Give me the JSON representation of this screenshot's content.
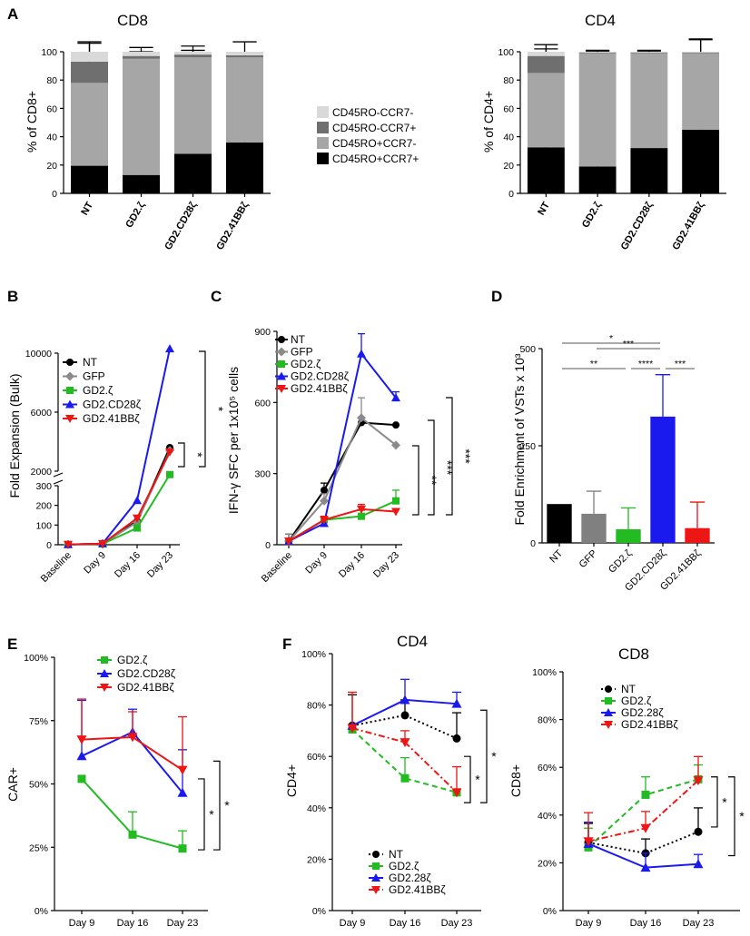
{
  "colors": {
    "black": "#000000",
    "dark_gray": "#6f6f6f",
    "gray": "#a6a6a6",
    "light_gray": "#d9d9d9",
    "green": "#22bb22",
    "blue": "#1a1aee",
    "red": "#ee1515",
    "diamond_gray": "#8a8a8a"
  },
  "panel_labels": {
    "A": "A",
    "B": "B",
    "C": "C",
    "D": "D",
    "E": "E",
    "F": "F"
  },
  "chart_data": [
    {
      "id": "A_CD8",
      "type": "bar",
      "stacked": true,
      "title": "CD8",
      "ylabel": "% of CD8+",
      "ylim": [
        0,
        100
      ],
      "yticks": [
        "0",
        "20",
        "40",
        "60",
        "80",
        "100"
      ],
      "categories": [
        "NT",
        "GD2.ζ",
        "GD2.CD28ζ",
        "GD2.41BBζ"
      ],
      "series": [
        {
          "name": "CD45RO+CCR7+",
          "color": "#000000",
          "values": [
            19.5,
            13,
            28,
            36
          ],
          "err": [
            11,
            5,
            7,
            12
          ]
        },
        {
          "name": "CD45RO+CCR7-",
          "color": "#a6a6a6",
          "values": [
            58.5,
            82,
            68,
            60
          ],
          "err": [
            0,
            0,
            0,
            0
          ]
        },
        {
          "name": "CD45RO-CCR7+",
          "color": "#6f6f6f",
          "values": [
            15,
            2,
            2,
            1.5
          ],
          "err": [
            13,
            3,
            3,
            2
          ]
        },
        {
          "name": "CD45RO-CCR7-",
          "color": "#d9d9d9",
          "values": [
            7,
            3,
            2,
            2.5
          ],
          "err": [
            7,
            3,
            4,
            7
          ]
        }
      ]
    },
    {
      "id": "A_CD4",
      "type": "bar",
      "stacked": true,
      "title": "CD4",
      "ylabel": "% of CD4+",
      "ylim": [
        0,
        100
      ],
      "yticks": [
        "0",
        "20",
        "40",
        "60",
        "80",
        "100"
      ],
      "categories": [
        "NT",
        "GD2.ζ",
        "GD2.CD28ζ",
        "GD2.41BBζ"
      ],
      "series": [
        {
          "name": "CD45RO+CCR7+",
          "color": "#000000",
          "values": [
            32.5,
            19,
            32,
            45
          ],
          "err": [
            6,
            3,
            2,
            11
          ]
        },
        {
          "name": "CD45RO+CCR7-",
          "color": "#a6a6a6",
          "values": [
            52.5,
            80,
            67,
            54
          ],
          "err": [
            0,
            0,
            0,
            0
          ]
        },
        {
          "name": "CD45RO-CCR7+",
          "color": "#6f6f6f",
          "values": [
            12,
            0.5,
            0.5,
            0.5
          ],
          "err": [
            5,
            1,
            1,
            9
          ]
        },
        {
          "name": "CD45RO-CCR7-",
          "color": "#d9d9d9",
          "values": [
            3,
            0.5,
            0.5,
            0.5
          ],
          "err": [
            5,
            1,
            1,
            9
          ]
        }
      ]
    },
    {
      "id": "B",
      "type": "line",
      "ylabel": "Fold Expansion (Bulk)",
      "x": [
        "Baseline",
        "Day 9",
        "Day 16",
        "Day 23"
      ],
      "ylim_lower": [
        0,
        300
      ],
      "ylim_upper": [
        2000,
        10000
      ],
      "yticks": [
        "0",
        "100",
        "200",
        "300",
        "2000",
        "6000",
        "10000"
      ],
      "series": [
        {
          "name": "NT",
          "color": "#000000",
          "marker": "circle",
          "values": [
            1,
            5,
            120,
            3600
          ]
        },
        {
          "name": "GFP",
          "color": "#8a8a8a",
          "marker": "diamond",
          "values": [
            1,
            5,
            115,
            3400
          ]
        },
        {
          "name": "GD2.ζ",
          "color": "#22bb22",
          "marker": "square",
          "values": [
            1,
            4,
            85,
            1600
          ]
        },
        {
          "name": "GD2.CD28ζ",
          "color": "#1a1aee",
          "marker": "triangle-up",
          "values": [
            1,
            6,
            225,
            10300
          ]
        },
        {
          "name": "GD2.41BBζ",
          "color": "#ee1515",
          "marker": "triangle-down",
          "values": [
            1,
            5,
            135,
            3300
          ]
        }
      ],
      "significance": [
        "*",
        "*"
      ]
    },
    {
      "id": "C",
      "type": "line",
      "ylabel": "IFN-γ SFC per 1x10⁵ cells",
      "x": [
        "Baseline",
        "Day 9",
        "Day 16",
        "Day 23"
      ],
      "ylim": [
        0,
        900
      ],
      "yticks": [
        "0",
        "300",
        "600",
        "900"
      ],
      "series": [
        {
          "name": "NT",
          "color": "#000000",
          "marker": "circle",
          "values": [
            15,
            230,
            515,
            505
          ],
          "err": [
            30,
            30,
            0,
            0
          ]
        },
        {
          "name": "GFP",
          "color": "#8a8a8a",
          "marker": "diamond",
          "values": [
            15,
            185,
            535,
            420
          ],
          "err": [
            30,
            30,
            85,
            0
          ]
        },
        {
          "name": "GD2.ζ",
          "color": "#22bb22",
          "marker": "square",
          "values": [
            15,
            105,
            120,
            185
          ],
          "err": [
            0,
            15,
            25,
            45
          ]
        },
        {
          "name": "GD2.CD28ζ",
          "color": "#1a1aee",
          "marker": "triangle-up",
          "values": [
            15,
            90,
            805,
            620
          ],
          "err": [
            0,
            0,
            85,
            25
          ]
        },
        {
          "name": "GD2.41BBζ",
          "color": "#ee1515",
          "marker": "triangle-down",
          "values": [
            15,
            105,
            150,
            140
          ],
          "err": [
            0,
            15,
            20,
            0
          ]
        }
      ],
      "significance": [
        "**",
        "***",
        "***"
      ]
    },
    {
      "id": "D",
      "type": "bar",
      "ylabel": "Fold Enrichment of VSTs x 10³",
      "ylim": [
        0,
        500
      ],
      "yticks": [
        "0",
        "250",
        "500"
      ],
      "categories": [
        "NT",
        "GFP",
        "GD2.ζ",
        "GD2.CD28ζ",
        "GD2.41BBζ"
      ],
      "values": [
        100,
        75,
        35,
        325,
        38
      ],
      "err": [
        0,
        58,
        55,
        108,
        67
      ],
      "colors": [
        "#000000",
        "#808080",
        "#22bb22",
        "#1a1aee",
        "#ee1515"
      ],
      "significance": [
        "*",
        "***",
        "**",
        "****",
        "***"
      ]
    },
    {
      "id": "E",
      "type": "line",
      "ylabel": "CAR+",
      "x": [
        "Day 9",
        "Day 16",
        "Day 23"
      ],
      "ylim": [
        0,
        100
      ],
      "yticks": [
        "0%",
        "25%",
        "50%",
        "75%",
        "100%"
      ],
      "series": [
        {
          "name": "GD2.ζ",
          "color": "#22bb22",
          "marker": "square",
          "values": [
            52,
            30,
            24.5
          ],
          "err": [
            0,
            9,
            7
          ]
        },
        {
          "name": "GD2.CD28ζ",
          "color": "#1a1aee",
          "marker": "triangle-up",
          "values": [
            61,
            70.5,
            46.5
          ],
          "err": [
            22,
            9,
            17
          ]
        },
        {
          "name": "GD2.41BBζ",
          "color": "#ee1515",
          "marker": "triangle-down",
          "values": [
            67.5,
            68.5,
            55.5
          ],
          "err": [
            16,
            10,
            21
          ]
        }
      ],
      "significance": [
        "*",
        "*"
      ]
    },
    {
      "id": "F_CD4",
      "type": "line",
      "title": "CD4",
      "ylabel": "CD4+",
      "x": [
        "Day 9",
        "Day 16",
        "Day 23"
      ],
      "ylim": [
        0,
        100
      ],
      "yticks": [
        "0%",
        "20%",
        "40%",
        "60%",
        "80%",
        "100%"
      ],
      "series": [
        {
          "name": "NT",
          "color": "#000000",
          "marker": "circle",
          "dash": "dotted",
          "values": [
            72,
            76,
            67
          ],
          "err": [
            12,
            6,
            10
          ]
        },
        {
          "name": "GD2.ζ",
          "color": "#22bb22",
          "marker": "square",
          "dash": "dashed",
          "values": [
            70.5,
            51.5,
            46
          ],
          "err": [
            0,
            8,
            0
          ]
        },
        {
          "name": "GD2.28ζ",
          "color": "#1a1aee",
          "marker": "triangle-up",
          "dash": "solid",
          "values": [
            72,
            82,
            80.5
          ],
          "err": [
            0,
            8,
            4.5
          ]
        },
        {
          "name": "GD2.41BBζ",
          "color": "#ee1515",
          "marker": "triangle-down",
          "dash": "dashdot",
          "values": [
            71,
            65.5,
            46
          ],
          "err": [
            14,
            4.5,
            10
          ]
        }
      ],
      "significance": [
        "*",
        "*"
      ]
    },
    {
      "id": "F_CD8",
      "type": "line",
      "title": "CD8",
      "ylabel": "CD8+",
      "x": [
        "Day 9",
        "Day 16",
        "Day 23"
      ],
      "ylim": [
        0,
        100
      ],
      "yticks": [
        "0%",
        "20%",
        "40%",
        "60%",
        "80%",
        "100%"
      ],
      "series": [
        {
          "name": "NT",
          "color": "#000000",
          "marker": "circle",
          "dash": "dotted",
          "values": [
            28.5,
            24,
            33
          ],
          "err": [
            8,
            6,
            10
          ]
        },
        {
          "name": "GD2.ζ",
          "color": "#22bb22",
          "marker": "square",
          "dash": "dashed",
          "values": [
            26.5,
            48.5,
            55
          ],
          "err": [
            8,
            7.5,
            6
          ]
        },
        {
          "name": "GD2.28ζ",
          "color": "#1a1aee",
          "marker": "triangle-up",
          "dash": "solid",
          "values": [
            28,
            18,
            19.5
          ],
          "err": [
            9,
            6,
            4
          ]
        },
        {
          "name": "GD2.41BBζ",
          "color": "#ee1515",
          "marker": "triangle-down",
          "dash": "dashdot",
          "values": [
            29,
            34.5,
            54.5
          ],
          "err": [
            12,
            7,
            10
          ]
        }
      ],
      "significance": [
        "*",
        "*"
      ]
    }
  ]
}
